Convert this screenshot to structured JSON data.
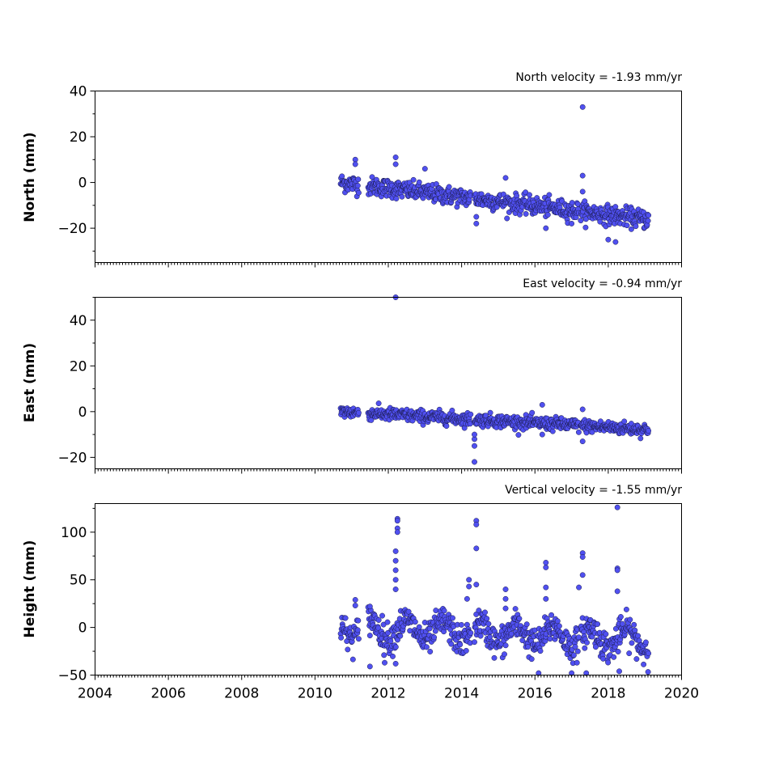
{
  "chart_data": [
    {
      "type": "scatter",
      "title": "North velocity = -1.93 mm/yr",
      "ylabel": "North (mm)",
      "xlim": [
        2004,
        2020
      ],
      "ylim": [
        -35,
        40
      ],
      "yticks": [
        40,
        20,
        0,
        -20
      ],
      "yticklabels": [
        "40",
        "20",
        "0",
        "−20"
      ],
      "trend": {
        "start": 0.0,
        "slope": -1.93,
        "noise": 2.0
      },
      "outliers": [
        [
          2017.3,
          33
        ],
        [
          2017.3,
          3
        ],
        [
          2017.3,
          -4
        ],
        [
          2012.2,
          11
        ],
        [
          2012.2,
          8
        ],
        [
          2011.1,
          10
        ],
        [
          2011.1,
          8
        ],
        [
          2013.0,
          6
        ],
        [
          2015.2,
          2
        ],
        [
          2016.3,
          -20
        ],
        [
          2018.0,
          -25
        ],
        [
          2018.2,
          -26
        ],
        [
          2014.4,
          -18
        ],
        [
          2014.4,
          -15
        ],
        [
          2017.0,
          -18
        ]
      ],
      "marker_color": "#5050f0"
    },
    {
      "type": "scatter",
      "title": "East velocity = -0.94 mm/yr",
      "ylabel": "East (mm)",
      "xlim": [
        2004,
        2020
      ],
      "ylim": [
        -25,
        50
      ],
      "yticks": [
        40,
        20,
        0,
        -20
      ],
      "yticklabels": [
        "40",
        "20",
        "0",
        "−20"
      ],
      "trend": {
        "start": 0.0,
        "slope": -0.94,
        "noise": 1.4
      },
      "outliers": [
        [
          2012.2,
          50
        ],
        [
          2014.35,
          -22
        ],
        [
          2014.35,
          -15
        ],
        [
          2014.35,
          -12
        ],
        [
          2014.35,
          -10
        ],
        [
          2016.2,
          3
        ],
        [
          2016.2,
          -10
        ],
        [
          2017.3,
          -13
        ],
        [
          2017.3,
          1
        ]
      ],
      "marker_color": "#5050f0"
    },
    {
      "type": "scatter",
      "title": "Vertical velocity = -1.55 mm/yr",
      "ylabel": "Height (mm)",
      "xlim": [
        2004,
        2020
      ],
      "ylim": [
        -50,
        130
      ],
      "xticks": [
        2004,
        2006,
        2008,
        2010,
        2012,
        2014,
        2016,
        2018,
        2020
      ],
      "xticklabels": [
        "2004",
        "2006",
        "2008",
        "2010",
        "2012",
        "2014",
        "2016",
        "2018",
        "2020"
      ],
      "yticks": [
        100,
        50,
        0,
        -50
      ],
      "yticklabels": [
        "100",
        "50",
        "0",
        "−50"
      ],
      "trend": {
        "start": 0.0,
        "slope": -1.55,
        "noise": 8.0,
        "seasonal": 10.0
      },
      "outliers": [
        [
          2012.25,
          114
        ],
        [
          2012.25,
          112
        ],
        [
          2012.25,
          104
        ],
        [
          2012.25,
          100
        ],
        [
          2012.2,
          80
        ],
        [
          2012.2,
          70
        ],
        [
          2012.2,
          60
        ],
        [
          2012.2,
          50
        ],
        [
          2012.2,
          40
        ],
        [
          2014.4,
          112
        ],
        [
          2014.4,
          108
        ],
        [
          2014.4,
          83
        ],
        [
          2014.4,
          45
        ],
        [
          2014.2,
          50
        ],
        [
          2014.2,
          43
        ],
        [
          2014.15,
          30
        ],
        [
          2015.2,
          40
        ],
        [
          2015.2,
          30
        ],
        [
          2015.2,
          20
        ],
        [
          2016.3,
          68
        ],
        [
          2016.3,
          63
        ],
        [
          2016.3,
          42
        ],
        [
          2016.3,
          30
        ],
        [
          2017.3,
          78
        ],
        [
          2017.3,
          74
        ],
        [
          2017.3,
          55
        ],
        [
          2017.2,
          42
        ],
        [
          2018.25,
          126
        ],
        [
          2018.25,
          62
        ],
        [
          2018.25,
          60
        ],
        [
          2018.25,
          38
        ],
        [
          2011.1,
          29
        ],
        [
          2011.1,
          23
        ],
        [
          2011.5,
          22
        ],
        [
          2011.5,
          -41
        ],
        [
          2016.1,
          -48
        ],
        [
          2017.0,
          -48
        ],
        [
          2017.4,
          -48
        ],
        [
          2018.3,
          -46
        ],
        [
          2011.9,
          -37
        ],
        [
          2012.2,
          -38
        ]
      ],
      "marker_color": "#5050f0"
    }
  ]
}
